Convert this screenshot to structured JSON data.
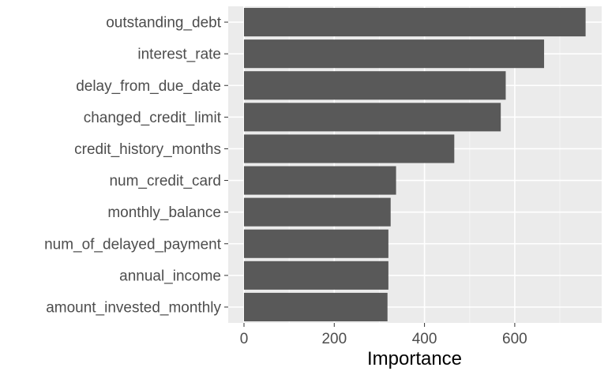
{
  "chart_data": {
    "type": "bar",
    "orientation": "horizontal",
    "categories": [
      "outstanding_debt",
      "interest_rate",
      "delay_from_due_date",
      "changed_credit_limit",
      "credit_history_months",
      "num_credit_card",
      "monthly_balance",
      "num_of_delayed_payment",
      "annual_income",
      "amount_invested_monthly"
    ],
    "values": [
      757,
      665,
      580,
      569,
      466,
      337,
      325,
      320,
      320,
      318
    ],
    "xlabel": "Importance",
    "ylabel": "",
    "xlim": [
      -37,
      790
    ],
    "xticks": [
      0,
      200,
      400,
      600
    ],
    "grid": true,
    "colors": {
      "bar": "#595959",
      "panel": "#ebebeb",
      "grid_major": "#ffffff",
      "grid_minor": "#f5f5f5",
      "tick_text": "#4d4d4d",
      "tick_mark": "#333333"
    }
  }
}
